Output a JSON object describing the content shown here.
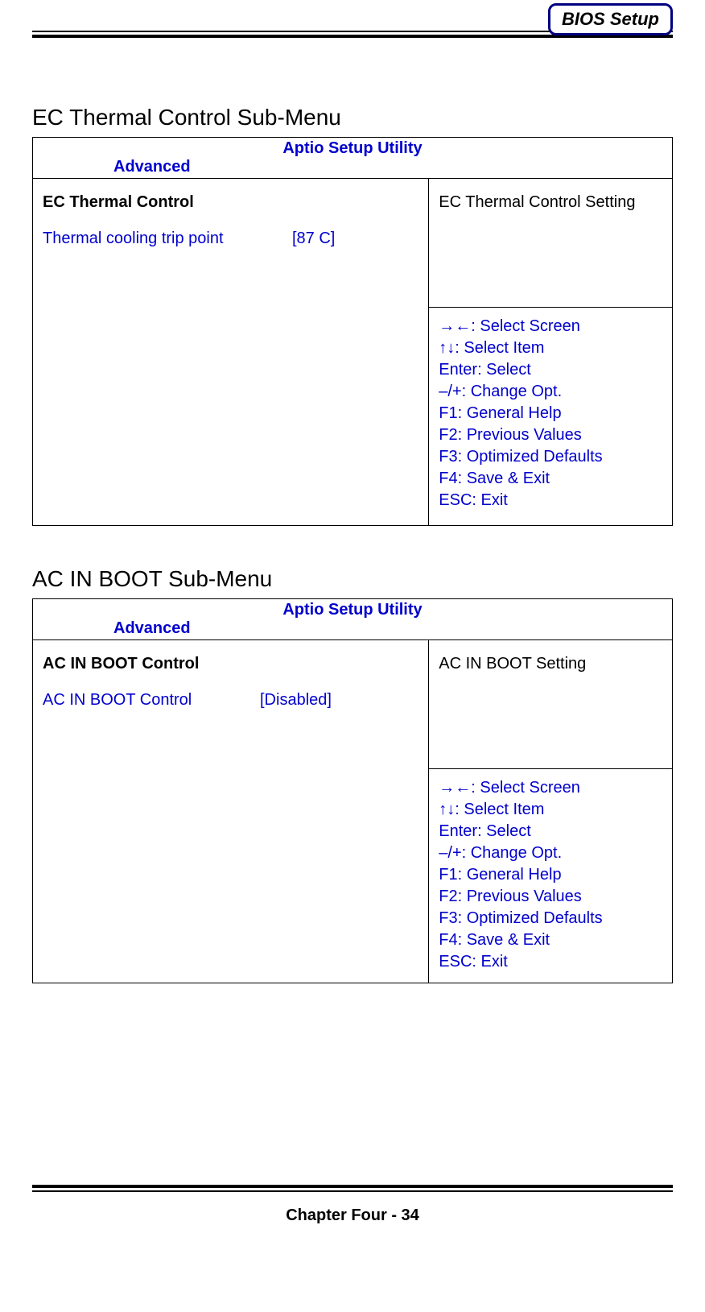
{
  "header": {
    "badge": "BIOS Setup"
  },
  "section1": {
    "title": "EC Thermal Control Sub-Menu",
    "utility_title": "Aptio Setup Utility",
    "tab": "Advanced",
    "control_title": "EC Thermal Control",
    "option_label": "Thermal cooling trip point",
    "option_value": "[87 C]",
    "help_text": "EC Thermal Control Setting",
    "nav": {
      "l1": "→←: Select Screen",
      "l2": "↑↓: Select Item",
      "l3": "Enter: Select",
      "l4": "–/+: Change Opt.",
      "l5": "F1: General Help",
      "l6": "F2: Previous Values",
      "l7": "F3: Optimized Defaults",
      "l8": "F4: Save & Exit",
      "l9": "ESC: Exit"
    }
  },
  "section2": {
    "title": "AC IN BOOT Sub-Menu",
    "utility_title": "Aptio Setup Utility",
    "tab": "Advanced",
    "control_title": "AC IN BOOT Control",
    "option_label": "AC IN BOOT Control",
    "option_value": "[Disabled]",
    "help_text": "AC IN BOOT Setting",
    "nav": {
      "l1": "→←: Select Screen",
      "l2": "↑↓: Select Item",
      "l3": "Enter: Select",
      "l4": "–/+: Change Opt.",
      "l5": "F1: General Help",
      "l6": "F2: Previous Values",
      "l7": "F3: Optimized Defaults",
      "l8": "F4: Save & Exit",
      "l9": "ESC: Exit"
    }
  },
  "footer": {
    "text": "Chapter Four - 34"
  },
  "colors": {
    "accent_blue": "#0000cc",
    "badge_border": "#000080",
    "rule_black": "#000000"
  }
}
